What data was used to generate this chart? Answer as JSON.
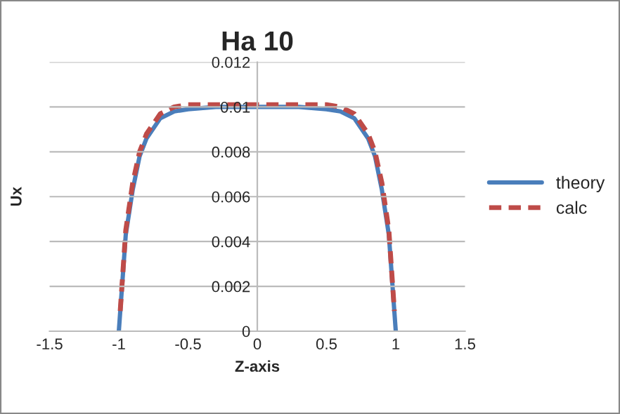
{
  "chart_data": {
    "type": "line",
    "title": "Ha 10",
    "xlabel": "Z-axis",
    "ylabel": "Ux",
    "xlim": [
      -1.5,
      1.5
    ],
    "xticks": [
      -1.5,
      -1,
      -0.5,
      0,
      0.5,
      1,
      1.5
    ],
    "ylim": [
      0,
      0.012
    ],
    "yticks": [
      0,
      0.002,
      0.004,
      0.006,
      0.008,
      0.01,
      0.012
    ],
    "grid": "y",
    "legend": "right",
    "marker": "none",
    "series": [
      {
        "name": "theory",
        "color": "#4a7ebb",
        "line_style": "solid",
        "x": [
          -1,
          -0.95,
          -0.9,
          -0.85,
          -0.8,
          -0.7,
          -0.6,
          -0.5,
          -0.3,
          0,
          0.3,
          0.5,
          0.6,
          0.7,
          0.8,
          0.85,
          0.9,
          0.95,
          1
        ],
        "values": [
          0,
          0.0043,
          0.0063,
          0.0078,
          0.0086,
          0.0095,
          0.0098,
          0.0099,
          0.01,
          0.01,
          0.01,
          0.0099,
          0.0098,
          0.0095,
          0.0086,
          0.0078,
          0.0063,
          0.0043,
          0
        ]
      },
      {
        "name": "calc",
        "color": "#be4b48",
        "line_style": "dashed",
        "x": [
          -0.99,
          -0.95,
          -0.9,
          -0.85,
          -0.8,
          -0.7,
          -0.6,
          -0.5,
          -0.3,
          0,
          0.3,
          0.5,
          0.6,
          0.7,
          0.8,
          0.85,
          0.9,
          0.95,
          0.99
        ],
        "values": [
          0.0009,
          0.0045,
          0.0066,
          0.008,
          0.0088,
          0.0097,
          0.01,
          0.0101,
          0.0101,
          0.0101,
          0.0101,
          0.0101,
          0.01,
          0.0097,
          0.0088,
          0.008,
          0.0066,
          0.0045,
          0.0009
        ]
      }
    ]
  }
}
